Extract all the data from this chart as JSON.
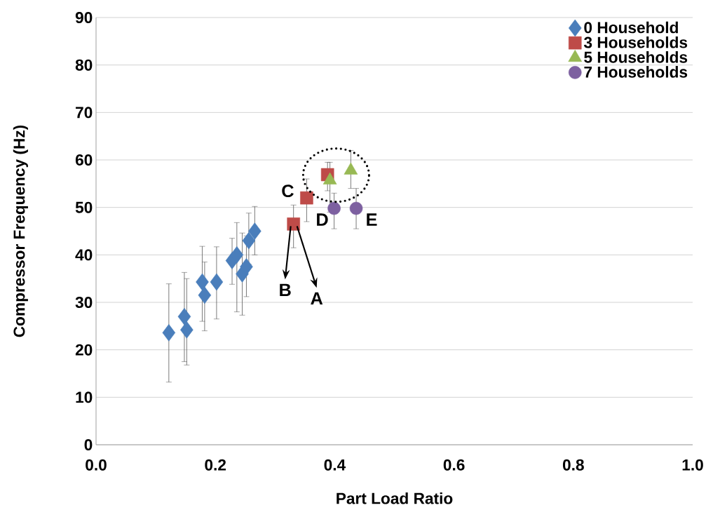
{
  "chart_data": {
    "type": "scatter",
    "xlabel": "Part Load Ratio",
    "ylabel": "Compressor Frequency (Hz)",
    "xlim": [
      0,
      1
    ],
    "xticks": [
      {
        "value": 0,
        "label": "0.0"
      },
      {
        "value": 0.2,
        "label": "0.2"
      },
      {
        "value": 0.4,
        "label": "0.4"
      },
      {
        "value": 0.6,
        "label": "0.6"
      },
      {
        "value": 0.8,
        "label": "0.8"
      },
      {
        "value": 1,
        "label": "1.0"
      }
    ],
    "ylim": [
      0,
      90
    ],
    "yticks": [
      0,
      10,
      20,
      30,
      40,
      50,
      60,
      70,
      80,
      90
    ],
    "grid": "y",
    "legend": "top right",
    "series": [
      {
        "name": "0 Household",
        "color": "#4a7ebb",
        "marker": "diamond",
        "x": [
          0.122,
          0.148,
          0.152,
          0.178,
          0.182,
          0.202,
          0.228,
          0.236,
          0.245,
          0.252,
          0.256,
          0.266
        ],
        "values": [
          23.6,
          27.0,
          24.2,
          34.3,
          31.5,
          34.3,
          38.8,
          40.0,
          36.0,
          37.5,
          43.0,
          45.0
        ],
        "errors": [
          [
            13.2,
            33.9
          ],
          [
            17.5,
            36.3
          ],
          [
            16.8,
            35.0
          ],
          [
            26.0,
            41.8
          ],
          [
            24.0,
            38.5
          ],
          [
            26.5,
            41.7
          ],
          [
            33.8,
            43.5
          ],
          [
            28.0,
            46.8
          ],
          [
            27.3,
            44.6
          ],
          [
            31.2,
            44.0
          ],
          [
            38.0,
            48.8
          ],
          [
            40.0,
            50.2
          ]
        ]
      },
      {
        "name": "3 Households",
        "color": "#be4b48",
        "marker": "square",
        "x": [
          0.331,
          0.353,
          0.388
        ],
        "values": [
          46.5,
          52.0,
          56.9
        ],
        "errors": [
          [
            41.5,
            50.5
          ],
          [
            47.0,
            56.0
          ],
          [
            53.5,
            59.5
          ]
        ]
      },
      {
        "name": "5 Households",
        "color": "#98b954",
        "marker": "triangle",
        "x": [
          0.392,
          0.427
        ],
        "values": [
          55.7,
          57.8
        ],
        "errors": [
          [
            49.0,
            59.5
          ],
          [
            54.0,
            62.0
          ]
        ]
      },
      {
        "name": "7 Households",
        "color": "#7d60a0",
        "marker": "circle",
        "x": [
          0.399,
          0.436
        ],
        "values": [
          49.8,
          49.8
        ],
        "errors": [
          [
            45.5,
            53.0
          ],
          [
            45.5,
            54.0
          ]
        ]
      }
    ],
    "annotations": [
      {
        "text": "A",
        "x": 0.331,
        "y": 46.5
      },
      {
        "text": "B",
        "x": 0.331,
        "y": 46.5
      },
      {
        "text": "C",
        "x": 0.353,
        "y": 52.0
      },
      {
        "text": "D",
        "x": 0.399,
        "y": 49.8
      },
      {
        "text": "E",
        "x": 0.436,
        "y": 49.8
      }
    ]
  }
}
